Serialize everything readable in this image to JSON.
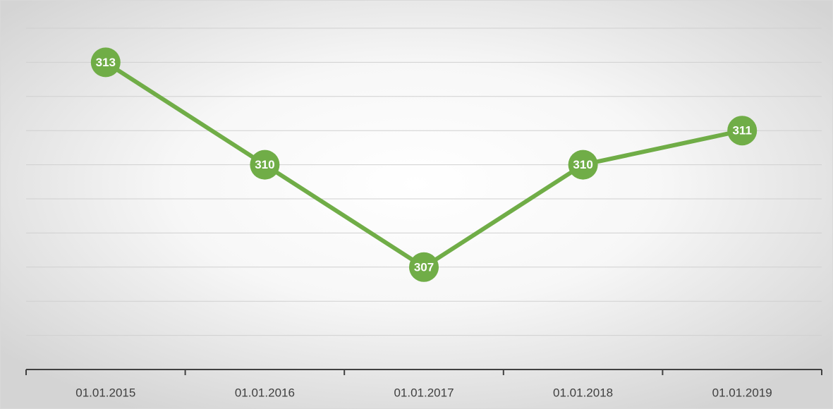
{
  "chart_data": {
    "type": "line",
    "categories": [
      "01.01.2015",
      "01.01.2016",
      "01.01.2017",
      "01.01.2018",
      "01.01.2019"
    ],
    "values": [
      313,
      310,
      307,
      310,
      311
    ],
    "color": "#70ad47",
    "ylim": [
      304,
      314
    ],
    "yticks": [
      304,
      305,
      306,
      307,
      308,
      309,
      310,
      311,
      312,
      313,
      314
    ],
    "grid": true
  }
}
